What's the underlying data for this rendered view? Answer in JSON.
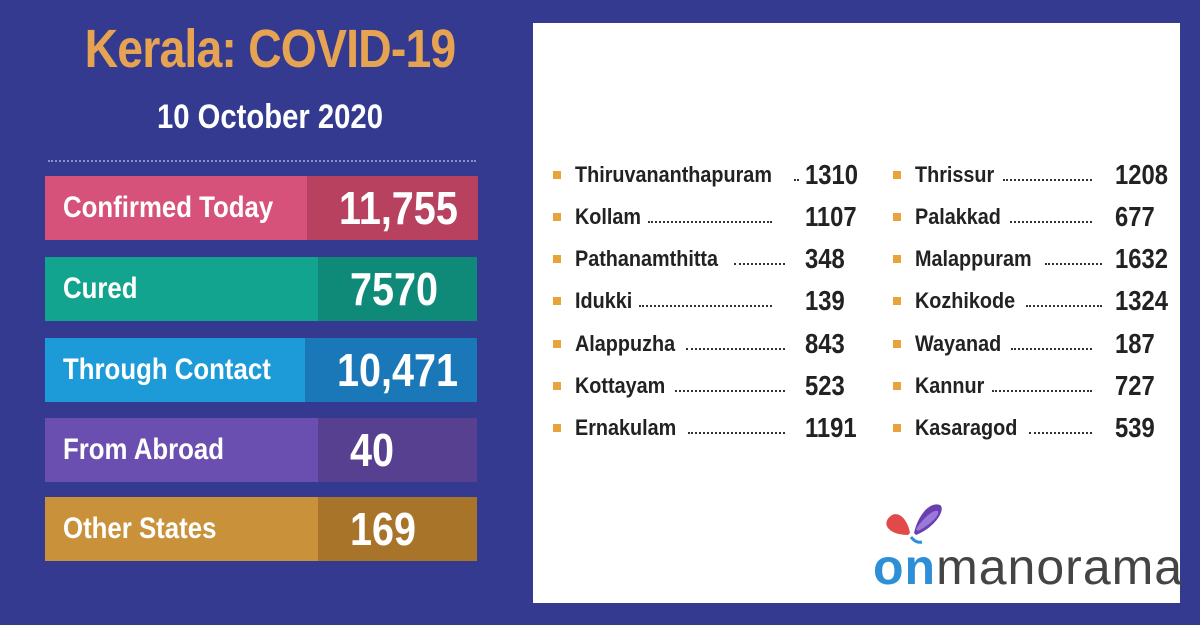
{
  "header": {
    "title": "Kerala: COVID-19",
    "date": "10 October 2020"
  },
  "stats": [
    {
      "label": "Confirmed Today",
      "value": "11,755",
      "label_color": "#d6527a",
      "value_color": "#b8415f"
    },
    {
      "label": "Cured",
      "value": "7570",
      "label_color": "#12a48f",
      "value_color": "#0f8a78"
    },
    {
      "label": "Through Contact",
      "value": "10,471",
      "label_color": "#1c9bd8",
      "value_color": "#1a78b8"
    },
    {
      "label": "From Abroad",
      "value": "40",
      "label_color": "#6a4fb0",
      "value_color": "#57408f"
    },
    {
      "label": "Other States",
      "value": "169",
      "label_color": "#c8913a",
      "value_color": "#a8742a"
    }
  ],
  "districts_left": [
    {
      "name": "Thiruvananthapuram",
      "value": "1310"
    },
    {
      "name": "Kollam",
      "value": "1107"
    },
    {
      "name": "Pathanamthitta",
      "value": "348"
    },
    {
      "name": "Idukki",
      "value": "139"
    },
    {
      "name": "Alappuzha",
      "value": "843"
    },
    {
      "name": "Kottayam",
      "value": "523"
    },
    {
      "name": "Ernakulam",
      "value": "1191"
    }
  ],
  "districts_right": [
    {
      "name": "Thrissur",
      "value": "1208"
    },
    {
      "name": "Palakkad",
      "value": "677"
    },
    {
      "name": "Malappuram",
      "value": "1632"
    },
    {
      "name": "Kozhikode",
      "value": "1324"
    },
    {
      "name": "Wayanad",
      "value": "187"
    },
    {
      "name": "Kannur",
      "value": "727"
    },
    {
      "name": "Kasaragod",
      "value": "539"
    }
  ],
  "logo": {
    "prefix": "on",
    "suffix": "manorama",
    "icon": "butterfly-icon"
  }
}
